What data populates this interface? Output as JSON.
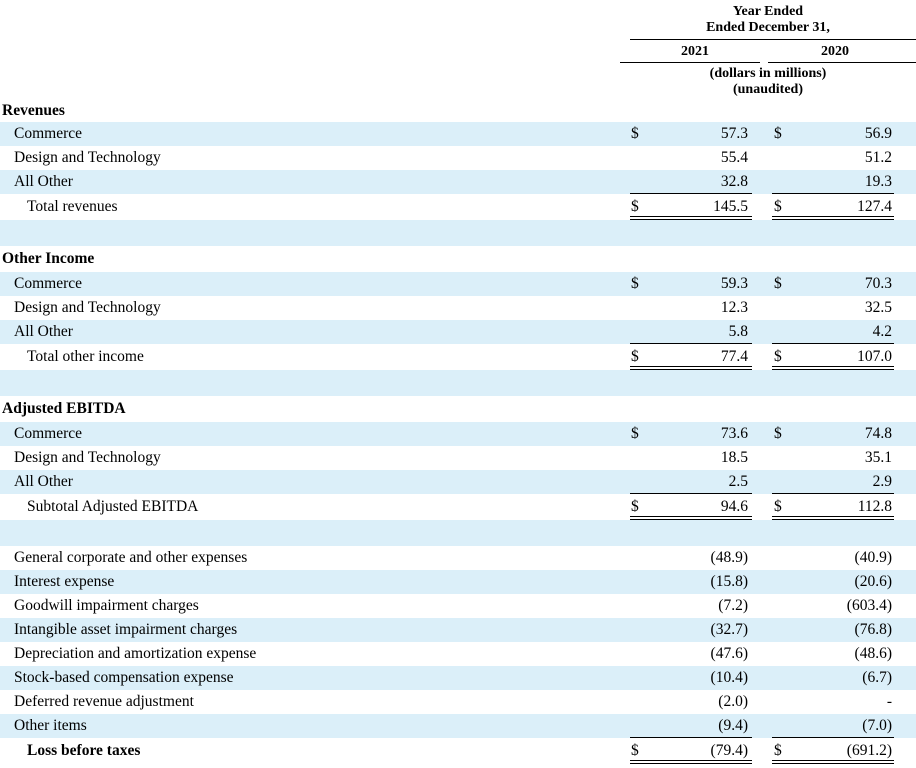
{
  "header": {
    "period_line1": "Year Ended",
    "period_line2": "Ended December 31,",
    "col_2021": "2021",
    "col_2020": "2020",
    "units_line1": "(dollars in millions)",
    "units_line2": "(unaudited)"
  },
  "currency_symbol": "$",
  "colors": {
    "row_shade": "#dbeff9"
  },
  "sections": {
    "revenues": {
      "title": "Revenues",
      "rows": [
        {
          "label": "Commerce",
          "v2021": "57.3",
          "v2020": "56.9",
          "dollar": true
        },
        {
          "label": "Design and Technology",
          "v2021": "55.4",
          "v2020": "51.2",
          "dollar": false
        },
        {
          "label": "All Other",
          "v2021": "32.8",
          "v2020": "19.3",
          "dollar": false
        }
      ],
      "total": {
        "label": "Total revenues",
        "v2021": "145.5",
        "v2020": "127.4"
      }
    },
    "other_income": {
      "title": "Other Income",
      "rows": [
        {
          "label": "Commerce",
          "v2021": "59.3",
          "v2020": "70.3",
          "dollar": true
        },
        {
          "label": "Design and Technology",
          "v2021": "12.3",
          "v2020": "32.5",
          "dollar": false
        },
        {
          "label": "All Other",
          "v2021": "5.8",
          "v2020": "4.2",
          "dollar": false
        }
      ],
      "total": {
        "label": "Total other income",
        "v2021": "77.4",
        "v2020": "107.0"
      }
    },
    "adjusted_ebitda": {
      "title": "Adjusted EBITDA",
      "rows": [
        {
          "label": "Commerce",
          "v2021": "73.6",
          "v2020": "74.8",
          "dollar": true
        },
        {
          "label": "Design and Technology",
          "v2021": "18.5",
          "v2020": "35.1",
          "dollar": false
        },
        {
          "label": "All Other",
          "v2021": "2.5",
          "v2020": "2.9",
          "dollar": false
        }
      ],
      "total": {
        "label": "Subtotal Adjusted EBITDA",
        "v2021": "94.6",
        "v2020": "112.8"
      }
    }
  },
  "adjustments": [
    {
      "label": "General corporate and other expenses",
      "v2021": "(48.9)",
      "v2020": "(40.9)"
    },
    {
      "label": "Interest expense",
      "v2021": "(15.8)",
      "v2020": "(20.6)"
    },
    {
      "label": "Goodwill impairment charges",
      "v2021": "(7.2)",
      "v2020": "(603.4)"
    },
    {
      "label": "Intangible asset impairment charges",
      "v2021": "(32.7)",
      "v2020": "(76.8)"
    },
    {
      "label": "Depreciation and amortization expense",
      "v2021": "(47.6)",
      "v2020": "(48.6)"
    },
    {
      "label": "Stock-based compensation expense",
      "v2021": "(10.4)",
      "v2020": "(6.7)"
    },
    {
      "label": "Deferred revenue adjustment",
      "v2021": "(2.0)",
      "v2020": "-"
    },
    {
      "label": "Other items",
      "v2021": "(9.4)",
      "v2020": "(7.0)"
    }
  ],
  "final": {
    "label": "Loss before taxes",
    "v2021": "(79.4)",
    "v2020": "(691.2)"
  }
}
